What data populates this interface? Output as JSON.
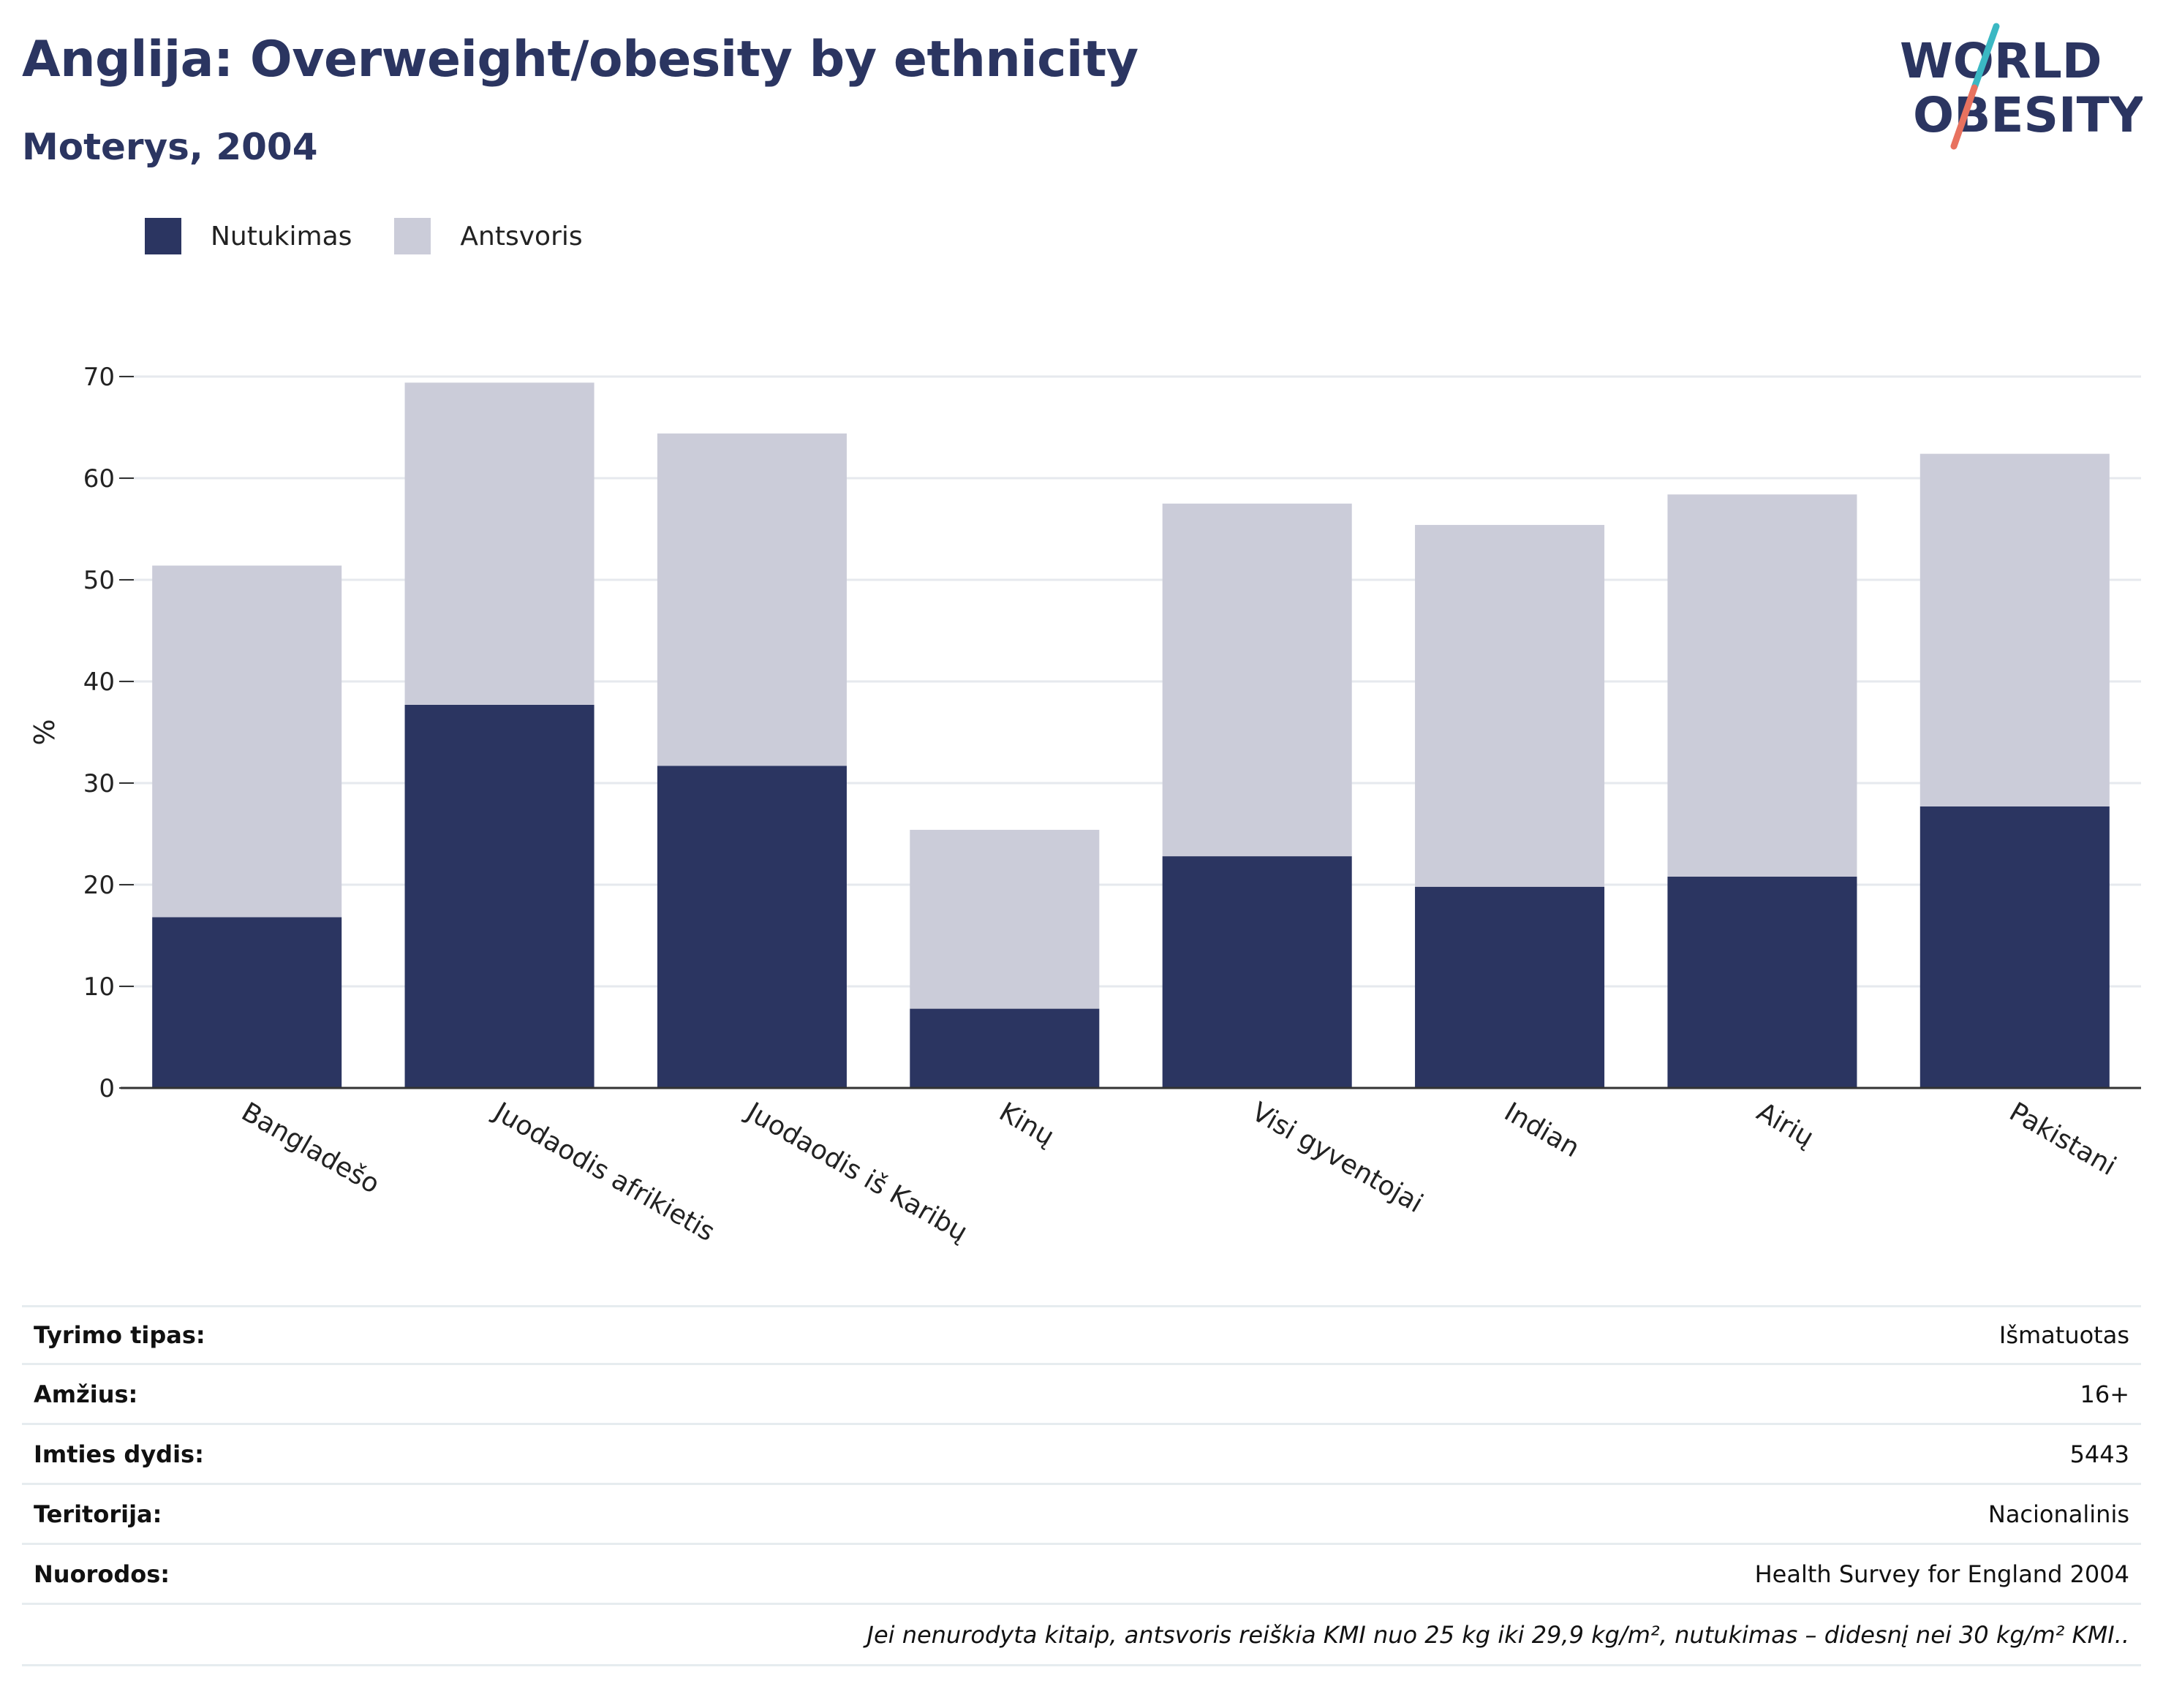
{
  "header": {
    "title": "Anglija: Overweight/obesity by ethnicity",
    "subtitle": "Moterys, 2004"
  },
  "logo": {
    "line1": "WORLD",
    "line2": "OBESITY",
    "colors": {
      "text": "#2b3561",
      "slash_top": "#3bb8c3",
      "slash_bottom": "#e8725f"
    }
  },
  "legend": [
    {
      "label": "Nutukimas",
      "color": "#2b3561"
    },
    {
      "label": "Antsvoris",
      "color": "#cbccd9"
    }
  ],
  "chart_data": {
    "type": "bar",
    "stacked": true,
    "categories": [
      "Bangladešo",
      "Juodaodis afrikietis",
      "Juodaodis iš Karibų",
      "Kinų",
      "Visi gyventojai",
      "Indian",
      "Airių",
      "Pakistani"
    ],
    "series": [
      {
        "name": "Nutukimas",
        "color": "#2b3561",
        "values": [
          16.8,
          37.7,
          31.7,
          7.8,
          22.8,
          19.8,
          20.8,
          27.7
        ]
      },
      {
        "name": "Antsvoris",
        "color": "#cbccd9",
        "values": [
          34.6,
          31.7,
          32.7,
          17.6,
          34.7,
          35.6,
          37.6,
          34.7
        ]
      }
    ],
    "totals": [
      51.4,
      69.4,
      64.4,
      25.4,
      57.5,
      55.4,
      58.4,
      62.4
    ],
    "ylabel": "%",
    "ylim": [
      0,
      70
    ],
    "yticks": [
      0,
      10,
      20,
      30,
      40,
      50,
      60,
      70
    ],
    "grid": true,
    "legend_position": "top-left"
  },
  "meta": [
    {
      "key": "Tyrimo tipas:",
      "value": "Išmatuotas"
    },
    {
      "key": "Amžius:",
      "value": "16+"
    },
    {
      "key": "Imties dydis:",
      "value": "5443"
    },
    {
      "key": "Teritorija:",
      "value": "Nacionalinis"
    },
    {
      "key": "Nuorodos:",
      "value": "Health Survey for England 2004"
    }
  ],
  "footnote": "Jei nenurodyta kitaip, antsvoris reiškia KMI nuo 25 kg iki 29,9 kg/m², nutukimas – didesnį nei 30 kg/m² KMI.."
}
